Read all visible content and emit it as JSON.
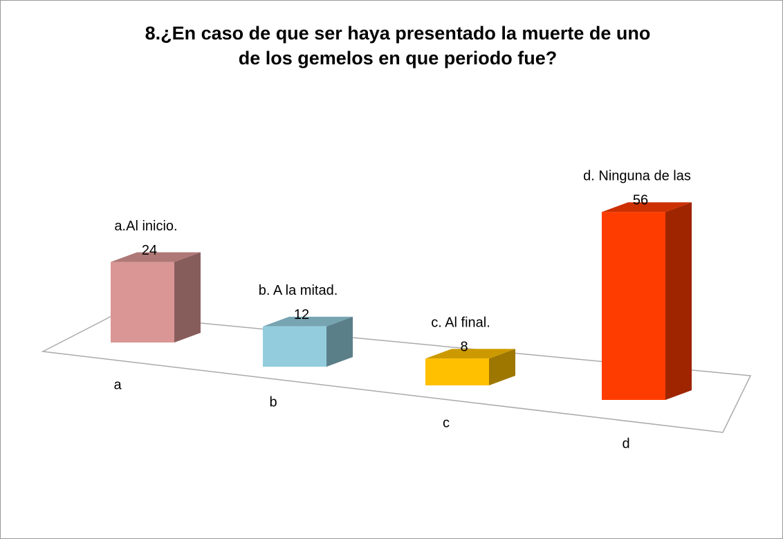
{
  "chart_data": {
    "type": "bar3d",
    "title": [
      "8.¿En caso de que ser haya presentado la muerte de uno",
      "de los gemelos en que periodo fue?"
    ],
    "categories": [
      "a",
      "b",
      "c",
      "d"
    ],
    "annotations": [
      "a.Al inicio.",
      "b. A la mitad.",
      "c. Al final.",
      "d. Ninguna de las"
    ],
    "values": [
      24,
      12,
      8,
      56
    ],
    "colors": [
      "#d99694",
      "#93cddd",
      "#ffc000",
      "#ff3c00"
    ]
  }
}
